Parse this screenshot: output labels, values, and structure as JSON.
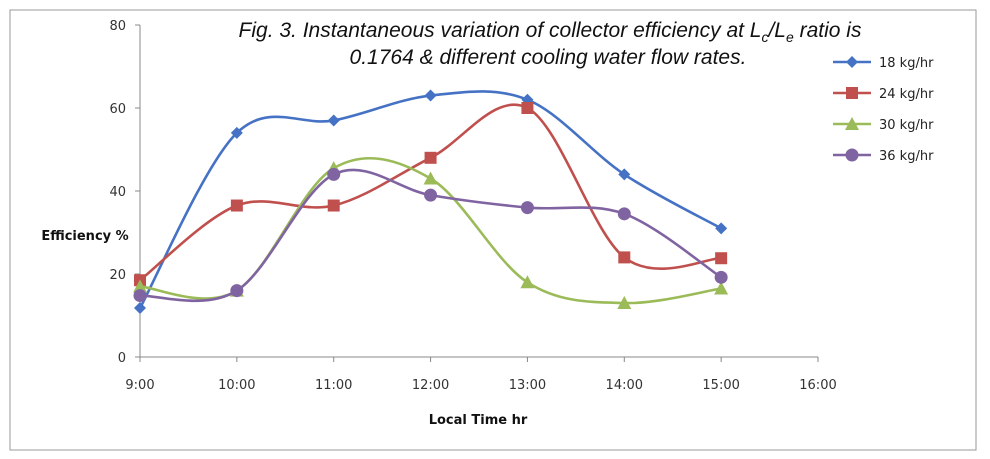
{
  "chart_data": {
    "type": "line",
    "title_line1_a": "Fig. 3. Instantaneous variation of collector efficiency at L",
    "title_line1_sub1": "c",
    "title_line1_b": "/L",
    "title_line1_sub2": "e",
    "title_line1_c": " ratio is",
    "title_line2": "0.1764 & different cooling water flow rates.",
    "xlabel": "Local Time hr",
    "ylabel": "Efficiency %",
    "xticks": [
      "9:00",
      "10:00",
      "11:00",
      "12:00",
      "13:00",
      "14:00",
      "15:00",
      "16:00"
    ],
    "ylim": [
      0,
      80
    ],
    "yticks": [
      0,
      20,
      40,
      60,
      80
    ],
    "smooth": true,
    "grid": false,
    "legend_position": "top-right",
    "series": [
      {
        "name": "18 kg/hr",
        "color": "#4572c4",
        "marker": "diamond",
        "x": [
          9.0,
          10.0,
          11.0,
          12.0,
          13.0,
          14.0,
          15.0
        ],
        "values": [
          11.8,
          54,
          57,
          63,
          62,
          44,
          31
        ]
      },
      {
        "name": "24 kg/hr",
        "color": "#c0504d",
        "marker": "square",
        "x": [
          9.0,
          10.0,
          11.0,
          12.0,
          13.0,
          14.0,
          15.0
        ],
        "values": [
          18.5,
          36.5,
          36.5,
          48,
          60,
          24,
          23.8
        ]
      },
      {
        "name": "30 kg/hr",
        "color": "#9bbb59",
        "marker": "triangle",
        "x": [
          9.0,
          10.0,
          11.0,
          12.0,
          13.0,
          14.0,
          15.0
        ],
        "values": [
          17,
          16,
          45.5,
          43,
          18,
          13,
          16.5
        ]
      },
      {
        "name": "36 kg/hr",
        "color": "#8064a2",
        "marker": "circle",
        "x": [
          9.0,
          10.0,
          11.0,
          12.0,
          13.0,
          14.0,
          15.0
        ],
        "values": [
          14.8,
          16,
          44,
          39,
          36,
          34.5,
          19.2
        ]
      }
    ]
  }
}
